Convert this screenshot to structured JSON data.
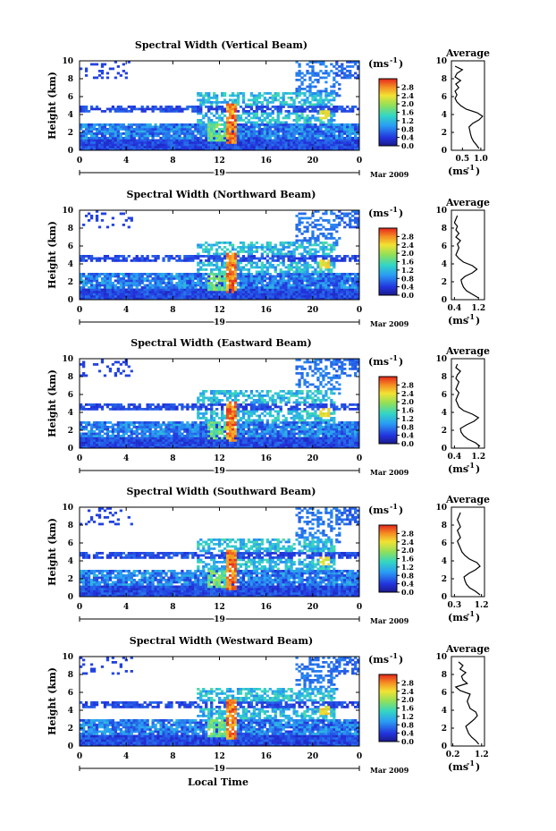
{
  "figure": {
    "xlabel": "Local Time",
    "ylabel": "Height (km)",
    "date_marker": "19",
    "month_year": "Mar 2009",
    "colorbar_unit": "(ms",
    "colorbar_unit_exp": "-1",
    "colorbar_unit_close": ")",
    "avg_title": "Average",
    "avg_xlabel": "(ms",
    "avg_xlabel_exp": "-1",
    "avg_xlabel_close": ")"
  },
  "chart_data": [
    {
      "type": "heatmap",
      "title": "Spectral Width (Vertical Beam)",
      "x_ticks": [
        "0",
        "4",
        "8",
        "12",
        "16",
        "20",
        "0"
      ],
      "xlim": [
        0,
        24
      ],
      "y_ticks": [
        "0",
        "2",
        "4",
        "6",
        "8",
        "10"
      ],
      "ylim": [
        0,
        10
      ],
      "colorbar_ticks": [
        "0.0",
        "0.4",
        "0.8",
        "1.2",
        "1.6",
        "2.0",
        "2.4",
        "2.8"
      ],
      "colorbar_range": [
        0,
        3.2
      ],
      "avg_profile": {
        "x_ticks": [
          "0.5",
          "1.0"
        ],
        "xlim": [
          0.2,
          1.1
        ],
        "y_ticks": [
          "0",
          "2",
          "4",
          "6",
          "8",
          "10"
        ],
        "height_km": [
          0.2,
          0.6,
          1.0,
          1.4,
          1.8,
          2.2,
          2.6,
          3.0,
          3.4,
          3.8,
          4.2,
          4.6,
          5.0,
          5.4,
          5.8,
          6.2,
          6.6,
          7.0,
          7.4,
          7.8,
          8.2,
          8.6,
          9.0,
          9.4
        ],
        "width_ms": [
          0.95,
          0.88,
          0.8,
          0.75,
          0.72,
          0.7,
          0.68,
          0.78,
          0.95,
          1.05,
          0.9,
          0.6,
          0.45,
          0.35,
          0.3,
          0.35,
          0.3,
          0.4,
          0.32,
          0.45,
          0.3,
          0.35,
          0.5,
          0.3
        ]
      }
    },
    {
      "type": "heatmap",
      "title": "Spectral Width (Northward Beam)",
      "x_ticks": [
        "0",
        "4",
        "8",
        "12",
        "16",
        "20",
        "0"
      ],
      "xlim": [
        0,
        24
      ],
      "y_ticks": [
        "0",
        "2",
        "4",
        "6",
        "8",
        "10"
      ],
      "ylim": [
        0,
        10
      ],
      "colorbar_ticks": [
        "0.0",
        "0.4",
        "0.8",
        "1.2",
        "1.6",
        "2.0",
        "2.4",
        "2.8"
      ],
      "colorbar_range": [
        0,
        3.2
      ],
      "avg_profile": {
        "x_ticks": [
          "0.4",
          "1.2"
        ],
        "xlim": [
          0.3,
          1.4
        ],
        "y_ticks": [
          "0",
          "2",
          "4",
          "6",
          "8",
          "10"
        ],
        "height_km": [
          0.2,
          0.6,
          1.0,
          1.4,
          1.8,
          2.2,
          2.6,
          3.0,
          3.4,
          3.8,
          4.2,
          4.6,
          5.0,
          5.4,
          5.8,
          6.2,
          6.6,
          7.0,
          7.4,
          7.8,
          8.2,
          8.6,
          9.0,
          9.4
        ],
        "width_ms": [
          1.2,
          1.0,
          0.8,
          0.7,
          0.65,
          0.62,
          0.75,
          1.0,
          1.15,
          1.0,
          0.7,
          0.55,
          0.45,
          0.5,
          0.55,
          0.5,
          0.6,
          0.45,
          0.55,
          0.45,
          0.5,
          0.4,
          0.45,
          0.5
        ]
      }
    },
    {
      "type": "heatmap",
      "title": "Spectral Width (Eastward Beam)",
      "x_ticks": [
        "0",
        "4",
        "8",
        "12",
        "16",
        "20",
        "0"
      ],
      "xlim": [
        0,
        24
      ],
      "y_ticks": [
        "0",
        "2",
        "4",
        "6",
        "8",
        "10"
      ],
      "ylim": [
        0,
        10
      ],
      "colorbar_ticks": [
        "0.0",
        "0.4",
        "0.8",
        "1.2",
        "1.6",
        "2.0",
        "2.4",
        "2.8"
      ],
      "colorbar_range": [
        0,
        3.2
      ],
      "avg_profile": {
        "x_ticks": [
          "0.4",
          "1.2"
        ],
        "xlim": [
          0.3,
          1.4
        ],
        "y_ticks": [
          "0",
          "2",
          "4",
          "6",
          "8",
          "10"
        ],
        "height_km": [
          0.2,
          0.6,
          1.0,
          1.4,
          1.8,
          2.2,
          2.6,
          3.0,
          3.4,
          3.8,
          4.2,
          4.6,
          5.0,
          5.4,
          5.8,
          6.2,
          6.6,
          7.0,
          7.4,
          7.8,
          8.2,
          8.6,
          9.0,
          9.4
        ],
        "width_ms": [
          1.25,
          1.1,
          0.85,
          0.7,
          0.62,
          0.6,
          0.8,
          1.05,
          1.2,
          1.0,
          0.7,
          0.55,
          0.5,
          0.45,
          0.5,
          0.55,
          0.45,
          0.5,
          0.55,
          0.45,
          0.5,
          0.6,
          0.45,
          0.5
        ]
      }
    },
    {
      "type": "heatmap",
      "title": "Spectral Width (Southward Beam)",
      "x_ticks": [
        "0",
        "4",
        "8",
        "12",
        "16",
        "20",
        "0"
      ],
      "xlim": [
        0,
        24
      ],
      "y_ticks": [
        "0",
        "2",
        "4",
        "6",
        "8",
        "10"
      ],
      "ylim": [
        0,
        10
      ],
      "colorbar_ticks": [
        "0.0",
        "0.4",
        "0.8",
        "1.2",
        "1.6",
        "2.0",
        "2.4",
        "2.8"
      ],
      "colorbar_range": [
        0,
        3.2
      ],
      "avg_profile": {
        "x_ticks": [
          "0.3",
          "1.2"
        ],
        "xlim": [
          0.2,
          1.3
        ],
        "y_ticks": [
          "0",
          "2",
          "4",
          "6",
          "8",
          "10"
        ],
        "height_km": [
          0.2,
          0.6,
          1.0,
          1.4,
          1.8,
          2.2,
          2.6,
          3.0,
          3.4,
          3.8,
          4.2,
          4.6,
          5.0,
          5.4,
          5.8,
          6.2,
          6.6,
          7.0,
          7.4,
          7.8,
          8.2,
          8.6,
          9.0,
          9.4
        ],
        "width_ms": [
          1.15,
          1.0,
          0.8,
          0.7,
          0.65,
          0.62,
          0.78,
          1.0,
          1.15,
          1.05,
          0.8,
          0.65,
          0.55,
          0.5,
          0.45,
          0.4,
          0.5,
          0.45,
          0.4,
          0.5,
          0.45,
          0.4,
          0.45,
          0.5
        ]
      }
    },
    {
      "type": "heatmap",
      "title": "Spectral Width (Westward Beam)",
      "x_ticks": [
        "0",
        "4",
        "8",
        "12",
        "16",
        "20",
        "0"
      ],
      "xlim": [
        0,
        24
      ],
      "y_ticks": [
        "0",
        "2",
        "4",
        "6",
        "8",
        "10"
      ],
      "ylim": [
        0,
        10
      ],
      "colorbar_ticks": [
        "0.0",
        "0.4",
        "0.8",
        "1.2",
        "1.6",
        "2.0",
        "2.4",
        "2.8"
      ],
      "colorbar_range": [
        0,
        3.2
      ],
      "avg_profile": {
        "x_ticks": [
          "0.2",
          "1.2"
        ],
        "xlim": [
          0.15,
          1.3
        ],
        "y_ticks": [
          "0",
          "2",
          "4",
          "6",
          "8",
          "10"
        ],
        "height_km": [
          0.2,
          0.6,
          1.0,
          1.4,
          1.8,
          2.2,
          2.6,
          3.0,
          3.4,
          3.8,
          4.2,
          4.6,
          5.0,
          5.4,
          5.8,
          6.2,
          6.6,
          7.0,
          7.4,
          7.8,
          8.2,
          8.6,
          9.0,
          9.4
        ],
        "width_ms": [
          1.1,
          1.0,
          0.85,
          0.75,
          0.7,
          0.65,
          0.8,
          0.95,
          1.05,
          1.0,
          0.8,
          0.75,
          0.7,
          0.75,
          0.8,
          0.45,
          0.3,
          0.7,
          0.55,
          0.5,
          0.65,
          0.45,
          0.55,
          0.4
        ]
      }
    }
  ]
}
